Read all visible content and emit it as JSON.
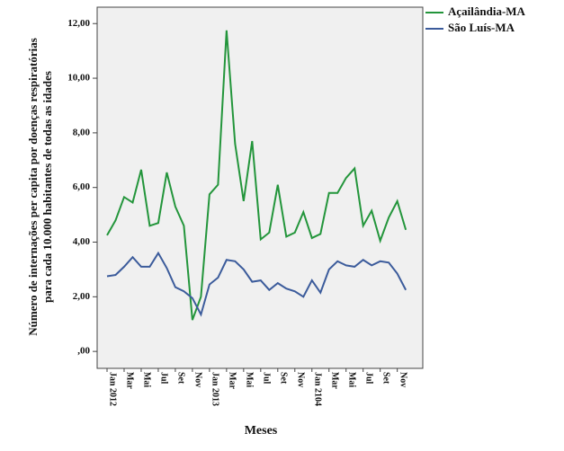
{
  "chart_data": {
    "type": "line",
    "ylabel": [
      "Número de internações per capita por doenças respiratórias",
      "para cada 10.000 habitantes de todas as idades"
    ],
    "xlabel": "Meses",
    "categories": [
      "Jan 2012",
      null,
      "Mar",
      null,
      "Mai",
      null,
      "Jul",
      null,
      "Set",
      null,
      "Nov",
      null,
      "Jan 2013",
      null,
      "Mar",
      null,
      "Mai",
      null,
      "Jul",
      null,
      "Set",
      null,
      "Nov",
      null,
      "Jan 2104",
      null,
      "Mar",
      null,
      "Mai",
      null,
      "Jul",
      null,
      "Set",
      null,
      "Nov",
      null
    ],
    "series": [
      {
        "name": "Açailândia-MA",
        "color": "#23953b",
        "values": [
          4.25,
          4.8,
          5.65,
          5.45,
          6.65,
          4.6,
          4.7,
          6.55,
          5.3,
          4.6,
          1.15,
          2.0,
          5.75,
          6.1,
          11.75,
          7.6,
          5.5,
          7.7,
          4.1,
          4.35,
          6.1,
          4.2,
          4.35,
          5.1,
          4.15,
          4.3,
          5.8,
          5.8,
          6.35,
          6.7,
          4.6,
          5.15,
          4.05,
          4.9,
          5.5,
          4.45
        ]
      },
      {
        "name": "São Luís-MA",
        "color": "#3b5b9b",
        "values": [
          2.75,
          2.8,
          3.1,
          3.45,
          3.1,
          3.1,
          3.6,
          3.05,
          2.35,
          2.2,
          1.95,
          1.35,
          2.45,
          2.7,
          3.35,
          3.3,
          3.0,
          2.55,
          2.6,
          2.25,
          2.5,
          2.3,
          2.2,
          2.0,
          2.6,
          2.15,
          3.0,
          3.3,
          3.15,
          3.1,
          3.35,
          3.15,
          3.3,
          3.25,
          2.85,
          2.25
        ]
      }
    ],
    "ylim": [
      -0.62,
      12.6
    ],
    "yticks": [
      {
        "value": 0,
        "label": ",00"
      },
      {
        "value": 2,
        "label": "2,00"
      },
      {
        "value": 4,
        "label": "4,00"
      },
      {
        "value": 6,
        "label": "6,00"
      },
      {
        "value": 8,
        "label": "8,00"
      },
      {
        "value": 10,
        "label": "10,00"
      },
      {
        "value": 12,
        "label": "12,00"
      }
    ],
    "legend": "right"
  }
}
